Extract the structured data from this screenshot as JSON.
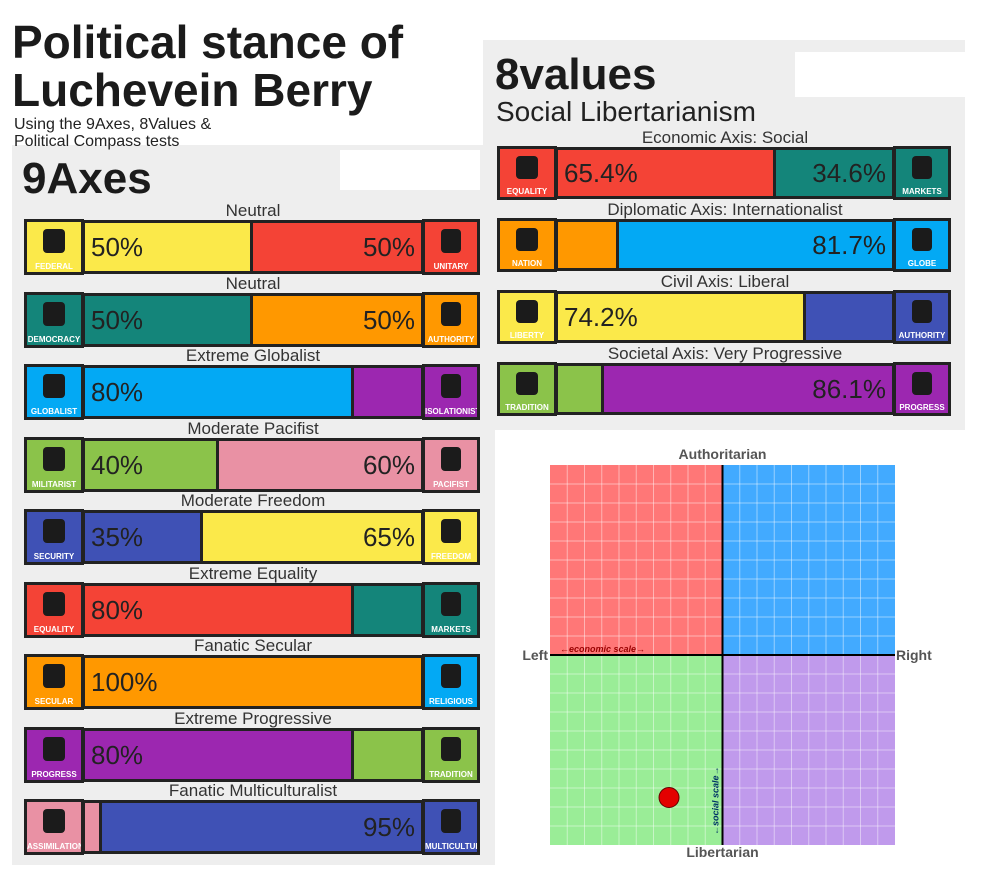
{
  "title": "Political stance of Luchevein Berry",
  "subtitle": "Using the 9Axes, 8Values & Political Compass tests",
  "nine_axes": {
    "title": "9Axes",
    "axes": [
      {
        "label": "Neutral",
        "left": {
          "name": "FEDERAL",
          "value": 50,
          "value_label": "50%",
          "color": "#fbe94a"
        },
        "right": {
          "name": "UNITARY",
          "value": 50,
          "value_label": "50%",
          "color": "#f44336"
        }
      },
      {
        "label": "Neutral",
        "left": {
          "name": "DEMOCRACY",
          "value": 50,
          "value_label": "50%",
          "color": "#14857a"
        },
        "right": {
          "name": "AUTHORITY",
          "value": 50,
          "value_label": "50%",
          "color": "#ff9800"
        }
      },
      {
        "label": "Extreme Globalist",
        "left": {
          "name": "GLOBALIST",
          "value": 80,
          "value_label": "80%",
          "color": "#03a9f4"
        },
        "right": {
          "name": "ISOLATIONIST",
          "value": 20,
          "color": "#9c27b0"
        }
      },
      {
        "label": "Moderate Pacifist",
        "left": {
          "name": "MILITARIST",
          "value": 40,
          "value_label": "40%",
          "color": "#8bc34a"
        },
        "right": {
          "name": "PACIFIST",
          "value": 60,
          "value_label": "60%",
          "color": "#e991a4"
        }
      },
      {
        "label": "Moderate Freedom",
        "left": {
          "name": "SECURITY",
          "value": 35,
          "value_label": "35%",
          "color": "#3f51b5"
        },
        "right": {
          "name": "FREEDOM",
          "value": 65,
          "value_label": "65%",
          "color": "#fbe94a"
        }
      },
      {
        "label": "Extreme Equality",
        "left": {
          "name": "EQUALITY",
          "value": 80,
          "value_label": "80%",
          "color": "#f44336"
        },
        "right": {
          "name": "MARKETS",
          "value": 20,
          "color": "#14857a"
        }
      },
      {
        "label": "Fanatic Secular",
        "left": {
          "name": "SECULAR",
          "value": 100,
          "value_label": "100%",
          "color": "#ff9800"
        },
        "right": {
          "name": "RELIGIOUS",
          "value": 0,
          "color": "#03a9f4"
        }
      },
      {
        "label": "Extreme Progressive",
        "left": {
          "name": "PROGRESS",
          "value": 80,
          "value_label": "80%",
          "color": "#9c27b0"
        },
        "right": {
          "name": "TRADITION",
          "value": 20,
          "color": "#8bc34a"
        }
      },
      {
        "label": "Fanatic Multiculturalist",
        "left": {
          "name": "ASSIMILATIONIST",
          "value": 5,
          "color": "#e991a4"
        },
        "right": {
          "name": "MULTICULTURALIST",
          "value": 95,
          "value_label": "95%",
          "color": "#3f51b5"
        }
      }
    ]
  },
  "eight_values": {
    "title": "8values",
    "ideology": "Social Libertarianism",
    "axes": [
      {
        "label": "Economic Axis: Social",
        "left": {
          "name": "EQUALITY",
          "value": 65.4,
          "value_label": "65.4%",
          "color": "#f44336"
        },
        "right": {
          "name": "MARKETS",
          "value": 34.6,
          "value_label": "34.6%",
          "color": "#14857a"
        }
      },
      {
        "label": "Diplomatic Axis: Internationalist",
        "left": {
          "name": "NATION",
          "value": 18.3,
          "color": "#ff9800"
        },
        "right": {
          "name": "GLOBE",
          "value": 81.7,
          "value_label": "81.7%",
          "color": "#03a9f4"
        }
      },
      {
        "label": "Civil Axis: Liberal",
        "left": {
          "name": "LIBERTY",
          "value": 74.2,
          "value_label": "74.2%",
          "color": "#fbe94a"
        },
        "right": {
          "name": "AUTHORITY",
          "value": 25.8,
          "color": "#3f51b5"
        }
      },
      {
        "label": "Societal Axis: Very Progressive",
        "left": {
          "name": "TRADITION",
          "value": 13.9,
          "color": "#8bc34a"
        },
        "right": {
          "name": "PROGRESS",
          "value": 86.1,
          "value_label": "86.1%",
          "color": "#9c27b0"
        }
      }
    ]
  },
  "compass": {
    "top": "Authoritarian",
    "bottom": "Libertarian",
    "left": "Left",
    "right": "Right",
    "x_label": "←economic scale→",
    "y_label": "←social scale→",
    "xlim": [
      -10,
      10
    ],
    "ylim": [
      -10,
      10
    ],
    "x": -3.1,
    "y": -7.5,
    "color": "#e30000"
  }
}
